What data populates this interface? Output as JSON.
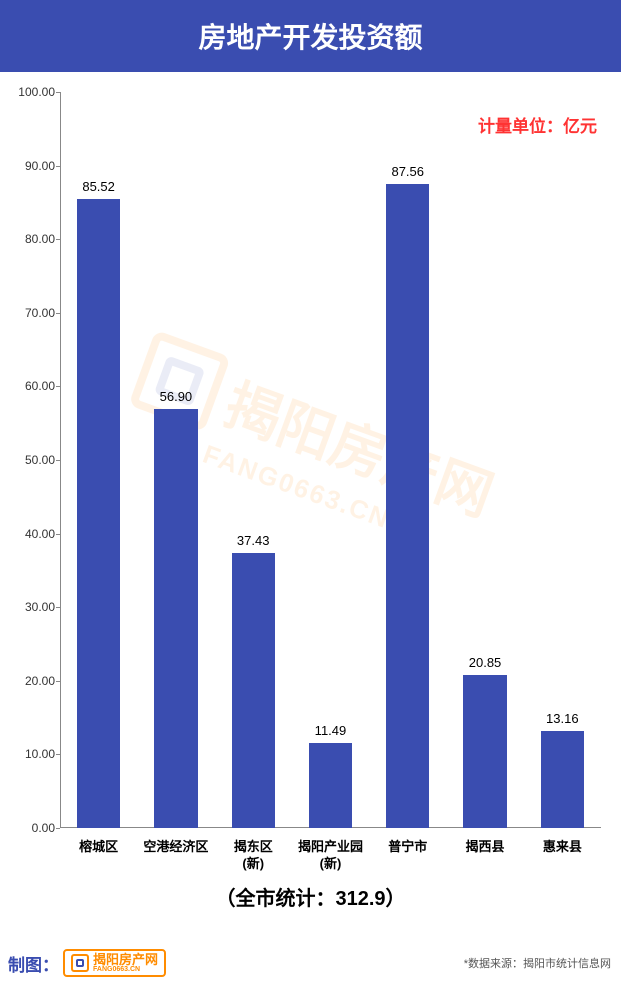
{
  "header": {
    "title": "房地产开发投资额",
    "background_color": "#3a4db0",
    "text_color": "#ffffff",
    "font_size": 28
  },
  "chart": {
    "type": "bar",
    "unit_label": "计量单位：亿元",
    "unit_label_color": "#ff3333",
    "categories": [
      "榕城区",
      "空港经济区",
      "揭东区\n(新)",
      "揭阳产业园\n(新)",
      "普宁市",
      "揭西县",
      "惠来县"
    ],
    "values": [
      85.52,
      56.9,
      37.43,
      11.49,
      87.56,
      20.85,
      13.16
    ],
    "value_labels": [
      "85.52",
      "56.90",
      "37.43",
      "11.49",
      "87.56",
      "20.85",
      "13.16"
    ],
    "bar_color": "#3a4db0",
    "ylim": [
      0,
      100
    ],
    "ytick_step": 10,
    "ytick_labels": [
      "0.00",
      "10.00",
      "20.00",
      "30.00",
      "40.00",
      "50.00",
      "60.00",
      "70.00",
      "80.00",
      "90.00",
      "100.00"
    ],
    "background_color": "#ffffff",
    "axis_color": "#888888",
    "label_fontsize": 13,
    "value_fontsize": 13,
    "bar_width_ratio": 0.56
  },
  "total": {
    "text": "（全市统计：312.9）"
  },
  "footer": {
    "credit_prefix": "制图：",
    "credit_color": "#3a4db0",
    "logo_text": "揭阳房产网",
    "logo_sub": "FANG0663.CN",
    "data_source": "*数据来源：揭阳市统计信息网"
  },
  "watermark": {
    "text": "揭阳房产网",
    "sub": "FANG0663.CN"
  }
}
